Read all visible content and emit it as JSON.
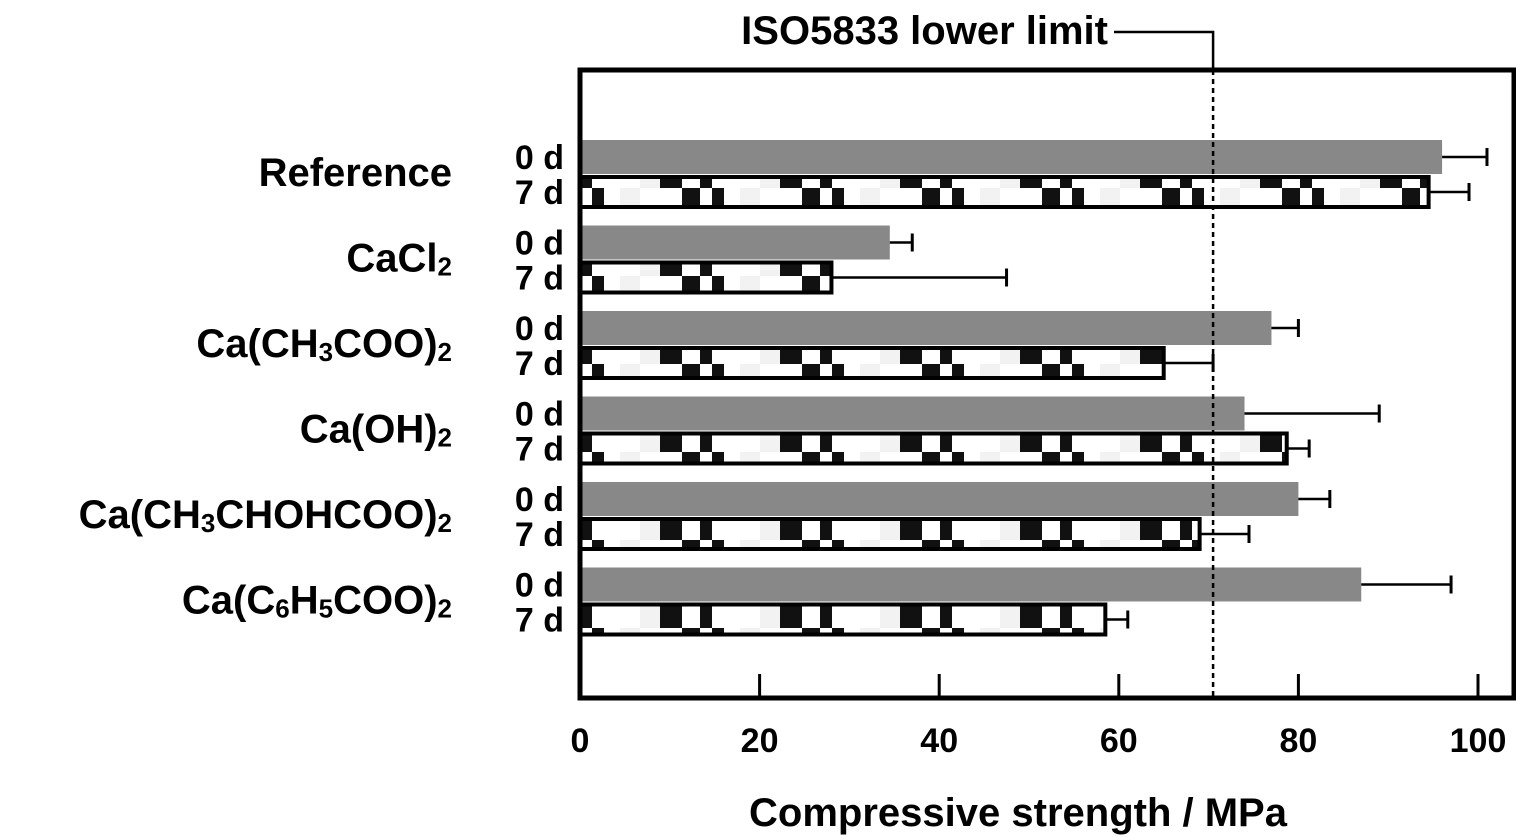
{
  "chart_data": {
    "type": "bar",
    "orientation": "horizontal",
    "categories": [
      {
        "key": "ref",
        "parts": [
          {
            "t": "Reference",
            "sub": false
          }
        ]
      },
      {
        "key": "cacl2",
        "parts": [
          {
            "t": "CaCl",
            "sub": false
          },
          {
            "t": "2",
            "sub": true
          }
        ]
      },
      {
        "key": "acetate",
        "parts": [
          {
            "t": "Ca(CH",
            "sub": false
          },
          {
            "t": "3",
            "sub": true
          },
          {
            "t": "COO)",
            "sub": false
          },
          {
            "t": "2",
            "sub": true
          }
        ]
      },
      {
        "key": "hydroxide",
        "parts": [
          {
            "t": "Ca(OH)",
            "sub": false
          },
          {
            "t": "2",
            "sub": true
          }
        ]
      },
      {
        "key": "lactate",
        "parts": [
          {
            "t": "Ca(CH",
            "sub": false
          },
          {
            "t": "3",
            "sub": true
          },
          {
            "t": "CHOHCOO)",
            "sub": false
          },
          {
            "t": "2",
            "sub": true
          }
        ]
      },
      {
        "key": "benzoate",
        "parts": [
          {
            "t": "Ca(C",
            "sub": false
          },
          {
            "t": "6",
            "sub": true
          },
          {
            "t": "H",
            "sub": false
          },
          {
            "t": "5",
            "sub": true
          },
          {
            "t": "COO)",
            "sub": false
          },
          {
            "t": "2",
            "sub": true
          }
        ]
      }
    ],
    "series": [
      {
        "name": "0 d",
        "values": [
          96,
          34.5,
          77,
          74,
          80,
          87
        ],
        "errors": [
          5,
          2.5,
          3,
          15,
          3.5,
          10
        ],
        "color": "#888888",
        "pattern": "solid"
      },
      {
        "name": "7 d",
        "values": [
          94.5,
          28,
          65,
          78.7,
          69,
          58.5
        ],
        "errors": [
          4.5,
          19.5,
          5.5,
          2.5,
          5.5,
          2.5
        ],
        "color": "#000000",
        "pattern": "checker"
      }
    ],
    "xlabel": "Compressive strength / MPa",
    "xlim": [
      0,
      104
    ],
    "xticks": [
      0,
      20,
      40,
      60,
      80,
      100
    ],
    "reference_line": {
      "value": 70.5,
      "label": "ISO5833 lower limit"
    },
    "grid": false
  }
}
